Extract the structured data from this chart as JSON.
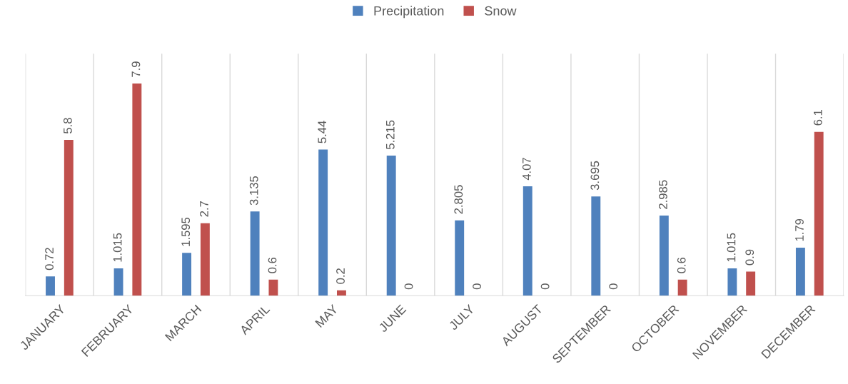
{
  "chart_data": {
    "type": "bar",
    "categories": [
      "JANUARY",
      "FEBRUARY",
      "MARCH",
      "APRIL",
      "MAY",
      "JUNE",
      "JULY",
      "AUGUST",
      "SEPTEMBER",
      "OCTOBER",
      "NOVEMBER",
      "DECEMBER"
    ],
    "series": [
      {
        "name": "Precipitation",
        "color": "#4f81bd",
        "values": [
          0.72,
          1.015,
          1.595,
          3.135,
          5.44,
          5.215,
          2.805,
          4.07,
          3.695,
          2.985,
          1.015,
          1.79
        ]
      },
      {
        "name": "Snow",
        "color": "#c0504d",
        "values": [
          5.8,
          7.9,
          2.7,
          0.6,
          0.2,
          0,
          0,
          0,
          0,
          0.6,
          0.9,
          6.1
        ]
      }
    ],
    "data_labels": true,
    "grid": "x",
    "legend": "top"
  }
}
